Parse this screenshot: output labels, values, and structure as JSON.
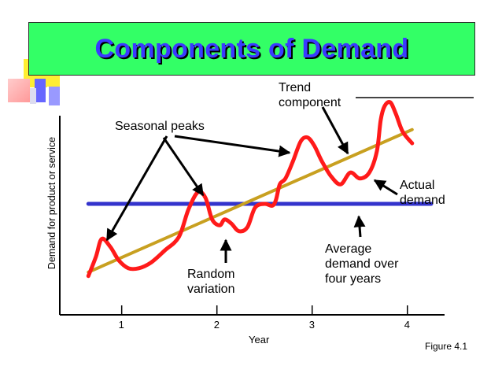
{
  "title": "Components of Demand",
  "colors": {
    "title_bg": "#33ff66",
    "title_text": "#3a3aff",
    "actual_demand": "#ff1a1a",
    "trend": "#c8a020",
    "average": "#3333cc",
    "deco_yellow": "#ffee33",
    "deco_pink": "#ff9999",
    "deco_blue": "#6666ff"
  },
  "annotations": {
    "trend": "Trend\ncomponent",
    "seasonal": "Seasonal peaks",
    "actual": "Actual\ndemand",
    "average": "Average\ndemand over\nfour years",
    "random": "Random\nvariation"
  },
  "figure_label": "Figure 4.1",
  "chart_data": {
    "type": "line",
    "title": "Components of Demand",
    "xlabel": "Year",
    "ylabel": "Demand for product or service",
    "x_ticks": [
      1,
      2,
      3,
      4
    ],
    "xlim": [
      0.35,
      4.25
    ],
    "ylim": [
      0,
      100
    ],
    "grid": false,
    "series": [
      {
        "name": "Actual demand",
        "x": [
          0.65,
          0.73,
          0.79,
          0.88,
          0.97,
          1.07,
          1.18,
          1.31,
          1.45,
          1.6,
          1.7,
          1.8,
          1.88,
          1.95,
          2.03,
          2.08,
          2.15,
          2.23,
          2.32,
          2.4,
          2.5,
          2.58,
          2.62,
          2.66,
          2.72,
          2.8,
          2.88,
          2.95,
          3.02,
          3.1,
          3.2,
          3.3,
          3.4,
          3.5,
          3.6,
          3.68,
          3.72,
          3.76,
          3.82,
          3.88,
          3.95,
          4.05
        ],
        "values": [
          11,
          21,
          30,
          26,
          19,
          15,
          15,
          18,
          24,
          31,
          45,
          54,
          51,
          40,
          37,
          40,
          38,
          34,
          36,
          46,
          48,
          47,
          50,
          58,
          61,
          70,
          80,
          82,
          78,
          70,
          62,
          58,
          64,
          61,
          64,
          75,
          91,
          98,
          100,
          94,
          85,
          79
        ]
      },
      {
        "name": "Trend component",
        "x": [
          0.65,
          4.05
        ],
        "values": [
          13,
          86
        ]
      },
      {
        "name": "Average demand over four years",
        "x": [
          0.65,
          4.25
        ],
        "values": [
          48,
          48
        ]
      }
    ]
  }
}
